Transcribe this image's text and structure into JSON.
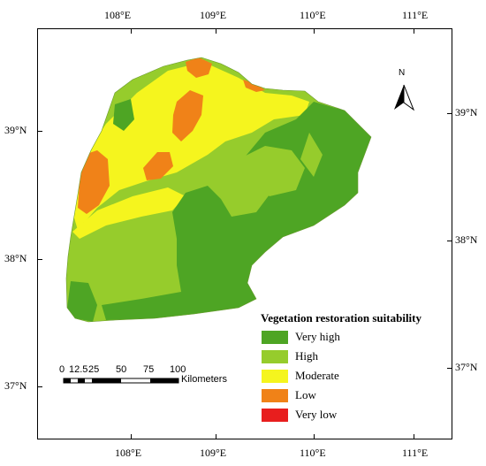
{
  "axes": {
    "top_ticks": [
      "108°E",
      "109°E",
      "110°E",
      "111°E"
    ],
    "bottom_ticks": [
      "108°E",
      "109°E",
      "110°E",
      "111°E"
    ],
    "left_ticks": [
      "39°N",
      "38°N",
      "37°N"
    ],
    "right_ticks": [
      "39°N",
      "38°N",
      "37°N"
    ]
  },
  "north_arrow": {
    "label": "N",
    "icon": "north-arrow-icon"
  },
  "scale_bar": {
    "numbers": [
      "0",
      "12.5",
      "25",
      "50",
      "75",
      "100"
    ],
    "unit": "Kilometers"
  },
  "legend": {
    "title": "Vegetation restoration suitability",
    "items": [
      {
        "label": "Very high",
        "color": "#4ea524"
      },
      {
        "label": "High",
        "color": "#96cc2c"
      },
      {
        "label": "Moderate",
        "color": "#f5f51e"
      },
      {
        "label": "Low",
        "color": "#f08218"
      },
      {
        "label": "Very low",
        "color": "#e81e1e"
      }
    ]
  }
}
